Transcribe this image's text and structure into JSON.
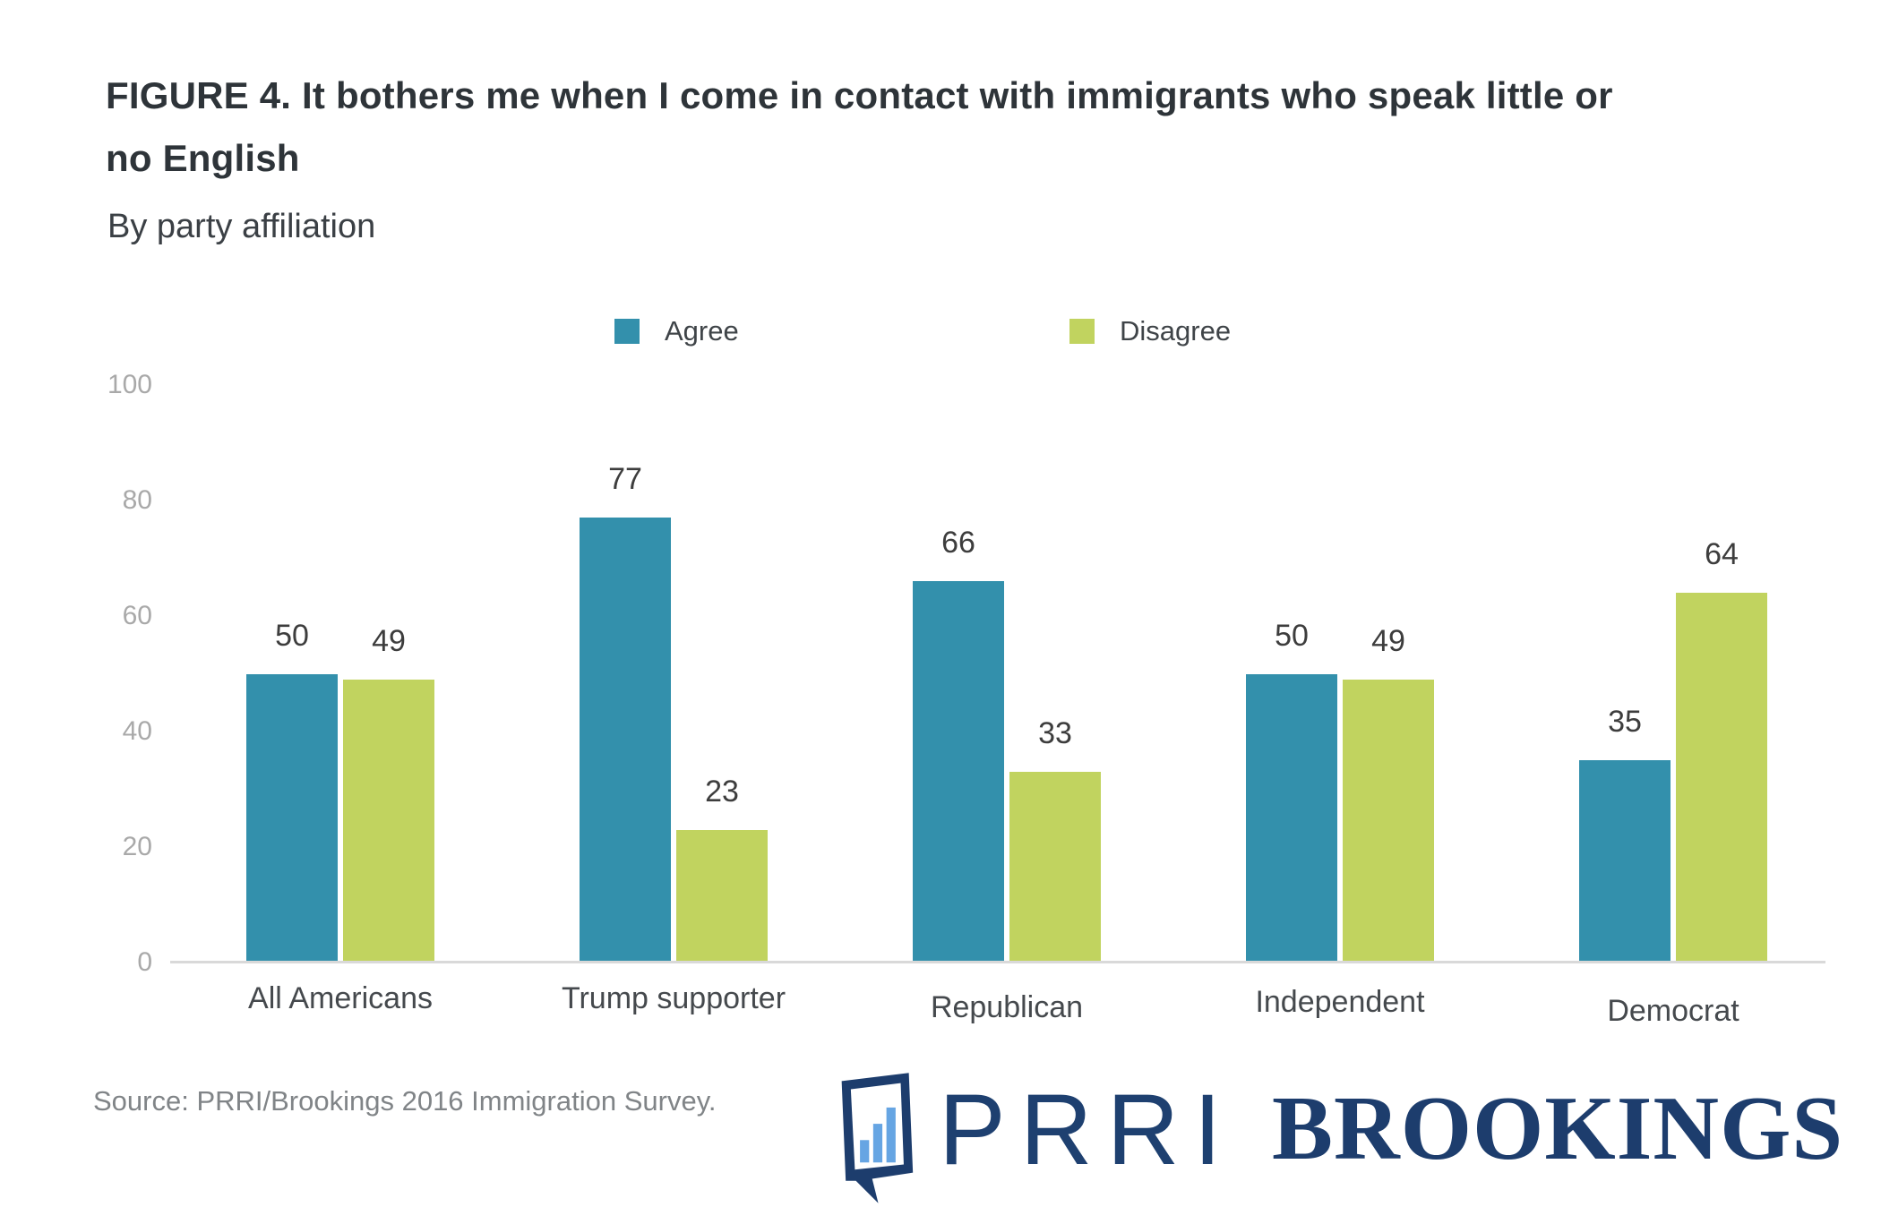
{
  "figure": {
    "title_line1": "FIGURE 4.  It bothers me when I come in contact with immigrants who speak little or",
    "title_line2": "no English",
    "subtitle": "By party affiliation",
    "source": "Source: PRRI/Brookings 2016 Immigration Survey.",
    "logos": {
      "prri": "PRRI",
      "brookings": "BROOKINGS"
    }
  },
  "chart_data": {
    "type": "bar",
    "title": "FIGURE 4. It bothers me when I come in contact with immigrants who speak little or no English",
    "subtitle": "By party affiliation",
    "categories": [
      "All Americans",
      "Trump supporter",
      "Republican",
      "Independent",
      "Democrat"
    ],
    "series": [
      {
        "name": "Agree",
        "color": "#3390ac",
        "values": [
          50,
          77,
          66,
          50,
          35
        ]
      },
      {
        "name": "Disagree",
        "color": "#c1d35f",
        "values": [
          49,
          23,
          33,
          49,
          64
        ]
      }
    ],
    "y_axis": {
      "ticks": [
        100,
        80,
        60,
        40,
        20,
        0
      ],
      "range": [
        0,
        100
      ],
      "gridlines": false
    },
    "legend_position": "top",
    "value_labels": true,
    "source": "Source: PRRI/Brookings 2016 Immigration Survey."
  },
  "colors": {
    "agree": "#3390ac",
    "disagree": "#c1d35f",
    "axis_line": "#d9d9d9",
    "tick_text": "#a9a9a9",
    "navy": "#1d3d6d",
    "logo_bar_blue": "#66a5e3"
  }
}
